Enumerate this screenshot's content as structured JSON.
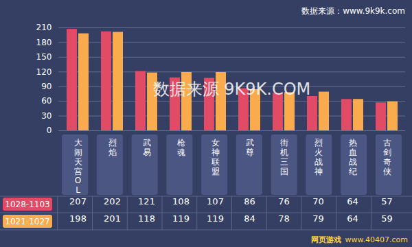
{
  "chart_data": {
    "type": "bar",
    "annotations": [
      "数据来源：www.9k9k.com",
      "数据来源 9K9K.COM",
      "网页游戏",
      "www.40407.com"
    ],
    "categories": [
      "大闹天宫OL",
      "烈焰",
      "武易",
      "枪魂",
      "女神联盟",
      "武尊",
      "街机三国",
      "烈火战神",
      "热血战纪",
      "古剑奇侠"
    ],
    "series": [
      {
        "name": "1028-1103",
        "color": "#e14b65",
        "values": [
          207,
          202,
          121,
          108,
          107,
          86,
          76,
          70,
          64,
          57
        ]
      },
      {
        "name": "1021-1027",
        "color": "#f9ab4d",
        "values": [
          198,
          201,
          118,
          119,
          119,
          84,
          78,
          79,
          64,
          59
        ]
      }
    ],
    "ylim": [
      0,
      210
    ],
    "yticks": [
      0,
      30,
      60,
      90,
      120,
      150,
      180,
      210
    ],
    "grid": true,
    "data_labels": true,
    "legend": "bottom-left"
  }
}
